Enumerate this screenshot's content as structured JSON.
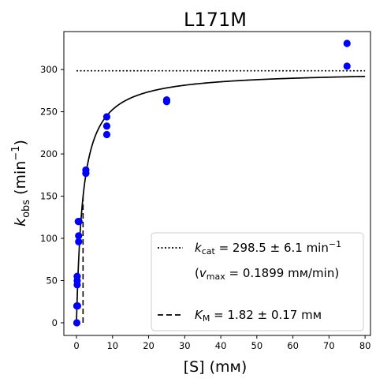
{
  "chart_data": {
    "type": "scatter",
    "title": "L171M",
    "xlabel": "[S] (mм)",
    "ylabel": {
      "main": "k",
      "sub": "obs",
      "units": " (min",
      "sup": "−1",
      "close": ")"
    },
    "xlim": [
      -3.5,
      81.5
    ],
    "ylim": [
      -15,
      345
    ],
    "x_ticks": [
      0,
      10,
      20,
      30,
      40,
      50,
      60,
      70,
      80
    ],
    "y_ticks": [
      0,
      50,
      100,
      150,
      200,
      250,
      300
    ],
    "grid": false,
    "legend_position": "bottom-right",
    "colors": {
      "points": "#0000ff",
      "fit": "#000000"
    },
    "series": [
      {
        "kind": "points",
        "x": [
          0.1,
          0.1,
          0.2,
          0.2,
          0.2,
          0.3,
          0.5,
          0.6,
          0.6,
          0.7,
          2.6,
          2.6,
          8.4,
          8.4,
          8.4,
          25.0,
          25.0,
          75.0,
          75.0
        ],
        "y": [
          0,
          20,
          45,
          50,
          55,
          20,
          120,
          103,
          96,
          120,
          181,
          177,
          244,
          233,
          223,
          264,
          262,
          331,
          304
        ]
      },
      {
        "kind": "michaelis-menten-fit",
        "kcat": 298.5,
        "KM": 1.82,
        "x_range": [
          0,
          80
        ]
      },
      {
        "kind": "kcat-line",
        "y": 298.5,
        "x_range": [
          0,
          80
        ]
      },
      {
        "kind": "km-line",
        "x": 1.82,
        "y_range": [
          0,
          150
        ]
      }
    ],
    "legend": {
      "kcat_symbol": "k",
      "kcat_sub": "cat",
      "kcat_value": " = 298.5 ± 6.1 min",
      "kcat_sup": "−1",
      "vmax_open": "(",
      "vmax_symbol": "v",
      "vmax_sub": "max",
      "vmax_value": " = 0.1899 mм/min)",
      "km_symbol": "K",
      "km_sub": "M",
      "km_value": " = 1.82 ± 0.17 mм"
    }
  }
}
